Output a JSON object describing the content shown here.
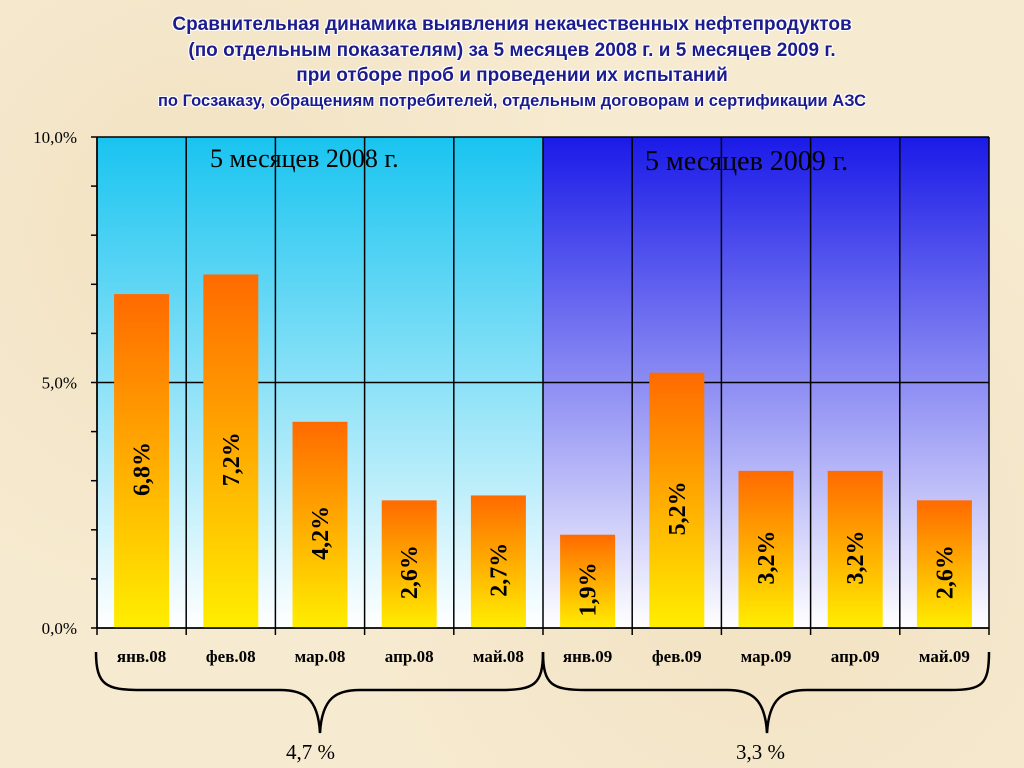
{
  "title": {
    "line1": "Сравнительная динамика выявления некачественных нефтепродуктов",
    "line2": "(по отдельным показателям) за 5 месяцев 2008 г. и 5 месяцев 2009 г.",
    "line3": "при отборе проб и проведении их испытаний",
    "line4": "по Госзаказу, обращениям потребителей, отдельным договорам и сертификации АЗС"
  },
  "periods": {
    "first": "5 месяцев 2008 г.",
    "second": "5 месяцев 2009 г."
  },
  "summary": {
    "first": "4,7 %",
    "second": "3,3 %"
  },
  "colors": {
    "panel_2008": "#19c4f0",
    "panel_2009": "#1a1ae8",
    "bar_top": "#ff6a00",
    "bar_bottom": "#ffee00"
  },
  "chart_data": {
    "type": "bar",
    "categories": [
      "янв.08",
      "фев.08",
      "мар.08",
      "апр.08",
      "май.08",
      "янв.09",
      "фев.09",
      "мар.09",
      "апр.09",
      "май.09"
    ],
    "values": [
      6.8,
      7.2,
      4.2,
      2.6,
      2.7,
      1.9,
      5.2,
      3.2,
      3.2,
      2.6
    ],
    "data_labels": [
      "6,8%",
      "7,2%",
      "4,2%",
      "2,6%",
      "2,7%",
      "1,9%",
      "5,2%",
      "3,2%",
      "3,2%",
      "2,6%"
    ],
    "ylim": [
      0,
      10
    ],
    "yticks": [
      0,
      5,
      10
    ],
    "ytick_labels": [
      "0,0%",
      "5,0%",
      "10,0%"
    ],
    "minor_ytick_step": 1,
    "grid": true,
    "legend": "none"
  }
}
